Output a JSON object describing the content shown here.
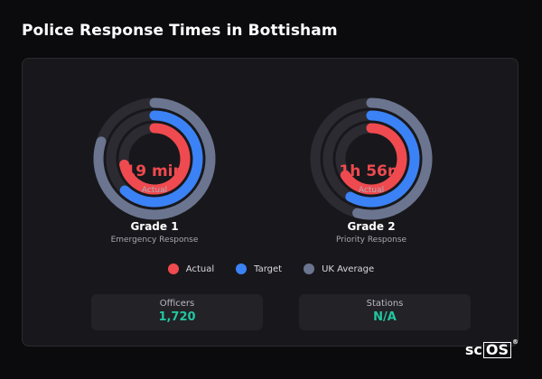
{
  "page": {
    "title": "Police Response Times in Bottisham"
  },
  "colors": {
    "actual": "#ef4a4f",
    "target": "#3b82f6",
    "uk_average": "#6b7590",
    "track": "#2b2b31",
    "stat_value": "#23c6a0"
  },
  "grades": [
    {
      "title": "Grade 1",
      "subtitle": "Emergency Response",
      "value": "19 min",
      "caption": "Actual",
      "rings": {
        "actual": 0.72,
        "target": 0.62,
        "uk_average": 0.8
      }
    },
    {
      "title": "Grade 2",
      "subtitle": "Priority Response",
      "value": "1h 56m",
      "caption": "Actual",
      "rings": {
        "actual": 0.66,
        "target": 0.58,
        "uk_average": 0.54
      }
    }
  ],
  "legend": [
    {
      "label": "Actual",
      "color": "#ef4a4f"
    },
    {
      "label": "Target",
      "color": "#3b82f6"
    },
    {
      "label": "UK Average",
      "color": "#6b7590"
    }
  ],
  "stats": [
    {
      "label": "Officers",
      "value": "1,720"
    },
    {
      "label": "Stations",
      "value": "N/A"
    }
  ],
  "logo": {
    "prefix": "sc",
    "boxed": "OS",
    "mark": "®"
  }
}
